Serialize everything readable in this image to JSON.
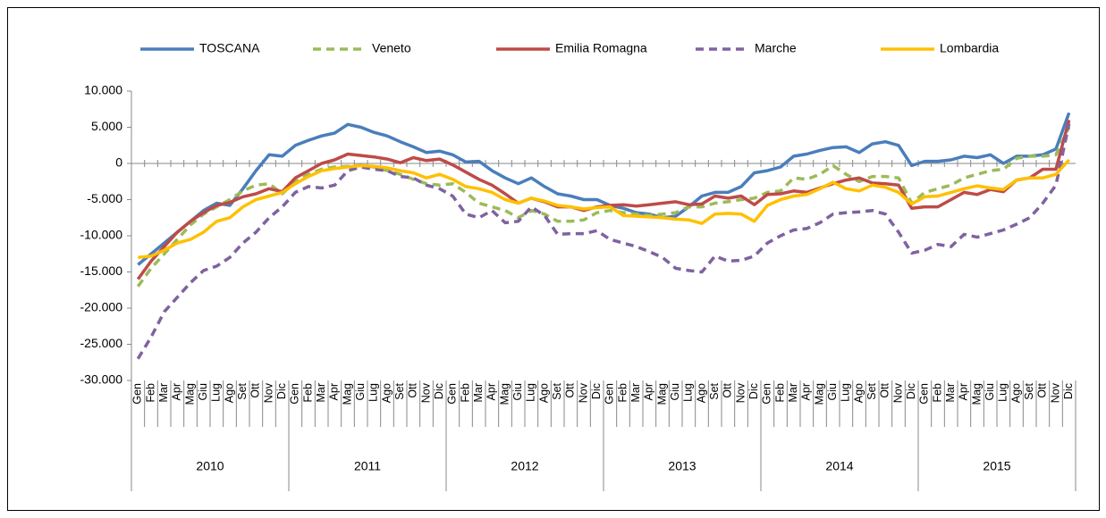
{
  "chart_data": {
    "type": "line",
    "categories": [
      "Gen",
      "Feb",
      "Mar",
      "Apr",
      "Mag",
      "Giu",
      "Lug",
      "Ago",
      "Set",
      "Ott",
      "Nov",
      "Dic",
      "Gen",
      "Feb",
      "Mar",
      "Apr",
      "Mag",
      "Giu",
      "Lug",
      "Ago",
      "Set",
      "Ott",
      "Nov",
      "Dic",
      "Gen",
      "Feb",
      "Mar",
      "Apr",
      "Mag",
      "Giu",
      "Lug",
      "Ago",
      "Set",
      "Ott",
      "Nov",
      "Dic",
      "Gen",
      "Feb",
      "Mar",
      "Apr",
      "Mag",
      "Giu",
      "Lug",
      "Ago",
      "Set",
      "Ott",
      "Nov",
      "Dic",
      "Gen",
      "Feb",
      "Mar",
      "Apr",
      "Mag",
      "Giu",
      "Lug",
      "Ago",
      "Set",
      "Ott",
      "Nov",
      "Dic",
      "Gen",
      "Feb",
      "Mar",
      "Apr",
      "Mag",
      "Giu",
      "Lug",
      "Ago",
      "Set",
      "Ott",
      "Nov",
      "Dic"
    ],
    "years": [
      "2010",
      "2011",
      "2012",
      "2013",
      "2014",
      "2015"
    ],
    "ylim": [
      -30000,
      10000
    ],
    "yticks": [
      {
        "value": 10000,
        "label": "10.000"
      },
      {
        "value": 5000,
        "label": "5.000"
      },
      0,
      {
        "value": -5000,
        "label": "-5.000"
      },
      {
        "value": -10000,
        "label": "-10.000"
      },
      {
        "value": -15000,
        "label": "-15.000"
      },
      {
        "value": -20000,
        "label": "-20.000"
      },
      {
        "value": -25000,
        "label": "-25.000"
      },
      {
        "value": -30000,
        "label": "-30.000"
      }
    ],
    "grid": false,
    "legend": "top",
    "series": [
      {
        "name": "TOSCANA",
        "color": "#4a7ebb",
        "dashed": false,
        "values": [
          -14000,
          -12500,
          -11000,
          -9500,
          -8000,
          -6500,
          -5500,
          -5800,
          -3500,
          -1000,
          1200,
          1000,
          2500,
          3200,
          3800,
          4200,
          5400,
          5000,
          4300,
          3800,
          3000,
          2300,
          1500,
          1700,
          1200,
          200,
          300,
          -1000,
          -2000,
          -2800,
          -2000,
          -3200,
          -4200,
          -4500,
          -5000,
          -5000,
          -5800,
          -6200,
          -6800,
          -7000,
          -7500,
          -7300,
          -6000,
          -4500,
          -4000,
          -4000,
          -3200,
          -1300,
          -1000,
          -500,
          1000,
          1300,
          1800,
          2200,
          2300,
          1500,
          2700,
          3000,
          2500,
          -300,
          300,
          300,
          500,
          1000,
          800,
          1200,
          0,
          1000,
          1000,
          1200,
          2000,
          7000
        ]
      },
      {
        "name": "Veneto",
        "color": "#9bbb59",
        "dashed": true,
        "values": [
          -17000,
          -14500,
          -12500,
          -10500,
          -8500,
          -7000,
          -6000,
          -5000,
          -3800,
          -3000,
          -2800,
          -4200,
          -2500,
          -1500,
          -800,
          -500,
          -400,
          -300,
          -500,
          -1000,
          -1500,
          -2200,
          -2800,
          -3000,
          -2800,
          -4000,
          -5500,
          -6000,
          -6500,
          -7500,
          -6500,
          -7000,
          -8000,
          -8000,
          -7800,
          -6800,
          -6500,
          -6800,
          -7000,
          -7200,
          -7000,
          -6800,
          -6000,
          -6000,
          -5500,
          -5300,
          -5000,
          -4800,
          -4000,
          -3800,
          -2000,
          -2200,
          -1500,
          -300,
          -1500,
          -2500,
          -1800,
          -1800,
          -2000,
          -5500,
          -4000,
          -3500,
          -3000,
          -2000,
          -1500,
          -1000,
          -800,
          700,
          1000,
          1000,
          1200,
          5000
        ]
      },
      {
        "name": "Emilia Romagna",
        "color": "#be4b48",
        "dashed": false,
        "values": [
          -16000,
          -13500,
          -11500,
          -9500,
          -8000,
          -6800,
          -5800,
          -5400,
          -4600,
          -4200,
          -3500,
          -3900,
          -2000,
          -1000,
          0,
          500,
          1300,
          1100,
          900,
          600,
          100,
          800,
          400,
          600,
          -200,
          -1200,
          -2200,
          -3000,
          -4200,
          -5500,
          -4800,
          -5300,
          -6000,
          -6000,
          -6500,
          -6000,
          -5800,
          -5700,
          -5900,
          -5700,
          -5500,
          -5300,
          -5700,
          -5600,
          -4500,
          -4800,
          -4500,
          -5700,
          -4300,
          -4200,
          -3800,
          -4000,
          -3400,
          -2800,
          -2300,
          -2000,
          -2700,
          -2800,
          -3000,
          -6200,
          -6000,
          -6000,
          -5000,
          -4000,
          -4300,
          -3600,
          -3900,
          -2300,
          -2000,
          -800,
          -800,
          6000
        ]
      },
      {
        "name": "Marche",
        "color": "#7f62a0",
        "dashed": true,
        "values": [
          -27000,
          -24000,
          -20500,
          -18500,
          -16500,
          -14800,
          -14200,
          -13000,
          -11000,
          -9500,
          -7500,
          -6000,
          -4000,
          -3200,
          -3400,
          -3000,
          -1000,
          -500,
          -800,
          -1000,
          -1800,
          -2000,
          -3000,
          -3500,
          -4500,
          -7000,
          -7500,
          -6500,
          -8200,
          -8000,
          -6000,
          -7200,
          -9800,
          -9700,
          -9700,
          -9300,
          -10500,
          -11000,
          -11500,
          -12200,
          -13000,
          -14500,
          -14800,
          -15000,
          -12800,
          -13500,
          -13400,
          -12800,
          -11000,
          -10000,
          -9200,
          -9000,
          -8200,
          -7000,
          -6800,
          -6700,
          -6500,
          -7000,
          -9500,
          -12400,
          -12000,
          -11200,
          -11500,
          -9800,
          -10200,
          -9700,
          -9200,
          -8400,
          -7500,
          -5500,
          -3000,
          5500
        ]
      },
      {
        "name": "Lombardia",
        "color": "#ffc000",
        "dashed": false,
        "values": [
          -13000,
          -12800,
          -12000,
          -11000,
          -10500,
          -9500,
          -8000,
          -7500,
          -6000,
          -5000,
          -4500,
          -4000,
          -2800,
          -1800,
          -1000,
          -700,
          -500,
          -300,
          -400,
          -600,
          -1000,
          -1300,
          -2000,
          -1500,
          -2200,
          -3200,
          -3500,
          -4000,
          -5000,
          -5500,
          -4800,
          -5200,
          -5800,
          -6000,
          -6300,
          -6100,
          -6000,
          -7200,
          -7300,
          -7400,
          -7500,
          -7700,
          -7800,
          -8300,
          -7000,
          -6900,
          -7000,
          -8000,
          -5800,
          -5000,
          -4500,
          -4300,
          -3500,
          -2600,
          -3500,
          -3800,
          -3000,
          -3300,
          -4000,
          -5600,
          -4600,
          -4500,
          -4000,
          -3500,
          -3100,
          -3400,
          -3600,
          -2300,
          -2000,
          -2000,
          -1500,
          500
        ]
      }
    ]
  }
}
